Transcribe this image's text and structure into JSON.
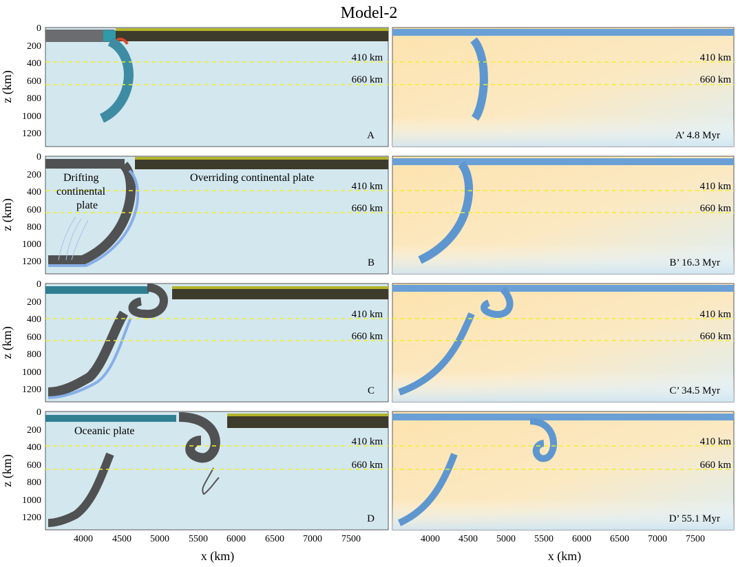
{
  "figure": {
    "title": "Model-2",
    "xlabel": "x (km)",
    "ylabel": "z (km)",
    "x_ticks": [
      "4000",
      "4500",
      "5000",
      "5500",
      "6000",
      "6500",
      "7000",
      "7500"
    ],
    "y_ticks": [
      "0",
      "200",
      "400",
      "600",
      "800",
      "1000",
      "1200"
    ],
    "discontinuity_labels": [
      "410 km",
      "660 km"
    ]
  },
  "panels": {
    "A": "A",
    "A_prime": "A’ 4.8 Myr",
    "B": "B",
    "B_prime": "B’ 16.3 Myr",
    "C": "C",
    "C_prime": "C’ 34.5 Myr",
    "D": "D",
    "D_prime": "D’ 55.1 Myr"
  },
  "annotations": {
    "drifting_plate": [
      "Drifting",
      "continental",
      "plate"
    ],
    "overriding_plate": "Overriding continental plate",
    "oceanic_plate": "Oceanic plate"
  },
  "colors": {
    "mantle": "#d3e7ee",
    "continental_crust": "#3d3b2c",
    "drifting_plate": "#505152",
    "oceanic_slab": "#3d8ca3",
    "weak_zone": "#86aee8",
    "temperature_warm": "#fde3ae",
    "temperature_cool": "#5e97cf",
    "discontinuity_line": "#f2ef2a"
  }
}
